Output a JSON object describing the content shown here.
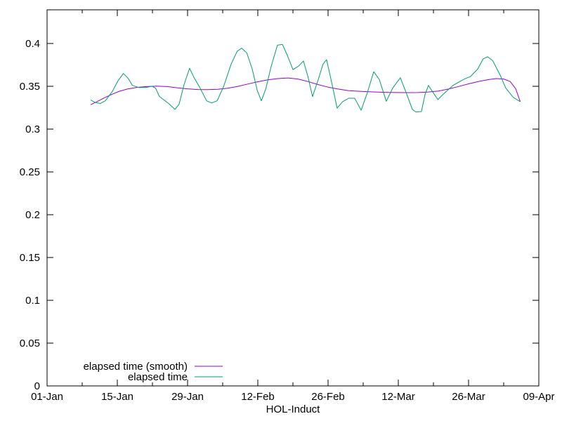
{
  "figure": {
    "background_color": "#ffffff",
    "axis_color": "#000000",
    "text_color": "#000000"
  },
  "chart_data": {
    "type": "line",
    "title": "",
    "xlabel": "HOL-Induct",
    "ylabel": "",
    "grid": false,
    "legend_position": "bottom-left-inside",
    "x_axis": {
      "unit": "date (day offset from 01-Jan)",
      "lim_days": [
        0,
        98
      ],
      "major_ticks": [
        {
          "day": 0,
          "label": "01-Jan"
        },
        {
          "day": 14,
          "label": "15-Jan"
        },
        {
          "day": 28,
          "label": "29-Jan"
        },
        {
          "day": 42,
          "label": "12-Feb"
        },
        {
          "day": 56,
          "label": "26-Feb"
        },
        {
          "day": 70,
          "label": "12-Mar"
        },
        {
          "day": 84,
          "label": "26-Mar"
        },
        {
          "day": 98,
          "label": "09-Apr"
        }
      ],
      "minor_tick_days": [
        7,
        21,
        35,
        49,
        63,
        77,
        91
      ]
    },
    "y_axis": {
      "lim": [
        0,
        0.4393
      ],
      "ticks": [
        {
          "value": 0,
          "label": "0"
        },
        {
          "value": 0.05,
          "label": "0.05"
        },
        {
          "value": 0.1,
          "label": "0.1"
        },
        {
          "value": 0.15,
          "label": "0.15"
        },
        {
          "value": 0.2,
          "label": "0.2"
        },
        {
          "value": 0.25,
          "label": "0.25"
        },
        {
          "value": 0.3,
          "label": "0.3"
        },
        {
          "value": 0.35,
          "label": "0.35"
        },
        {
          "value": 0.4,
          "label": "0.4"
        }
      ]
    },
    "series": [
      {
        "name": "elapsed time (smooth)",
        "color": "#9400d3",
        "points_day_value": [
          [
            8.7,
            0.3285
          ],
          [
            10,
            0.3322
          ],
          [
            11.5,
            0.3367
          ],
          [
            13,
            0.3408
          ],
          [
            14.5,
            0.3443
          ],
          [
            16,
            0.3468
          ],
          [
            18,
            0.3487
          ],
          [
            20,
            0.3498
          ],
          [
            22,
            0.3502
          ],
          [
            24,
            0.3496
          ],
          [
            26,
            0.3482
          ],
          [
            28,
            0.347
          ],
          [
            30,
            0.3462
          ],
          [
            32,
            0.346
          ],
          [
            34,
            0.3464
          ],
          [
            36,
            0.3477
          ],
          [
            38,
            0.3499
          ],
          [
            40,
            0.3526
          ],
          [
            42,
            0.3553
          ],
          [
            44,
            0.3575
          ],
          [
            46,
            0.359
          ],
          [
            48,
            0.3597
          ],
          [
            50,
            0.3585
          ],
          [
            52,
            0.3555
          ],
          [
            54,
            0.352
          ],
          [
            56,
            0.349
          ],
          [
            58,
            0.3468
          ],
          [
            60,
            0.345
          ],
          [
            62,
            0.3442
          ],
          [
            64,
            0.3436
          ],
          [
            66,
            0.3432
          ],
          [
            68,
            0.3428
          ],
          [
            70,
            0.3427
          ],
          [
            72,
            0.3426
          ],
          [
            74,
            0.3427
          ],
          [
            76,
            0.3433
          ],
          [
            78,
            0.3445
          ],
          [
            80,
            0.3468
          ],
          [
            82,
            0.3497
          ],
          [
            84,
            0.3528
          ],
          [
            86,
            0.3556
          ],
          [
            88,
            0.3578
          ],
          [
            89.5,
            0.359
          ],
          [
            91,
            0.3585
          ],
          [
            92.3,
            0.3555
          ],
          [
            93.4,
            0.347
          ],
          [
            94.3,
            0.332
          ]
        ]
      },
      {
        "name": "elapsed time",
        "color": "#009e73",
        "points_day_value": [
          [
            8.7,
            0.334
          ],
          [
            9.6,
            0.331
          ],
          [
            10.6,
            0.33
          ],
          [
            11.6,
            0.333
          ],
          [
            13,
            0.344
          ],
          [
            14.1,
            0.356
          ],
          [
            15.2,
            0.365
          ],
          [
            16.2,
            0.359
          ],
          [
            17,
            0.351
          ],
          [
            18.3,
            0.3485
          ],
          [
            19.6,
            0.3485
          ],
          [
            20.9,
            0.35
          ],
          [
            21.6,
            0.348
          ],
          [
            22.4,
            0.338
          ],
          [
            23.2,
            0.3345
          ],
          [
            24.2,
            0.33
          ],
          [
            25.5,
            0.323
          ],
          [
            26.3,
            0.329
          ],
          [
            27.3,
            0.352
          ],
          [
            28.4,
            0.371
          ],
          [
            29.3,
            0.36
          ],
          [
            30.4,
            0.349
          ],
          [
            31.8,
            0.333
          ],
          [
            32.8,
            0.3305
          ],
          [
            33.9,
            0.333
          ],
          [
            35.2,
            0.35
          ],
          [
            36.7,
            0.376
          ],
          [
            37.9,
            0.391
          ],
          [
            38.8,
            0.3945
          ],
          [
            39.8,
            0.389
          ],
          [
            40.9,
            0.37
          ],
          [
            41.9,
            0.345
          ],
          [
            42.7,
            0.333
          ],
          [
            43.6,
            0.347
          ],
          [
            44.6,
            0.372
          ],
          [
            45.9,
            0.398
          ],
          [
            46.9,
            0.399
          ],
          [
            47.9,
            0.386
          ],
          [
            49,
            0.3695
          ],
          [
            50.1,
            0.3735
          ],
          [
            51.1,
            0.3795
          ],
          [
            52,
            0.361
          ],
          [
            52.9,
            0.338
          ],
          [
            54,
            0.357
          ],
          [
            55,
            0.376
          ],
          [
            55.7,
            0.381
          ],
          [
            56.7,
            0.355
          ],
          [
            57.8,
            0.3245
          ],
          [
            58.9,
            0.332
          ],
          [
            60.1,
            0.336
          ],
          [
            61.3,
            0.336
          ],
          [
            62.6,
            0.322
          ],
          [
            63.8,
            0.342
          ],
          [
            65.1,
            0.367
          ],
          [
            66.2,
            0.358
          ],
          [
            67.6,
            0.3325
          ],
          [
            68.9,
            0.348
          ],
          [
            70.4,
            0.36
          ],
          [
            71.6,
            0.342
          ],
          [
            72.8,
            0.323
          ],
          [
            73.5,
            0.32
          ],
          [
            74.6,
            0.3205
          ],
          [
            75.3,
            0.34
          ],
          [
            76,
            0.351
          ],
          [
            77,
            0.342
          ],
          [
            77.9,
            0.3345
          ],
          [
            79,
            0.341
          ],
          [
            80.9,
            0.351
          ],
          [
            83,
            0.358
          ],
          [
            84.4,
            0.3615
          ],
          [
            85.8,
            0.37
          ],
          [
            86.9,
            0.382
          ],
          [
            87.8,
            0.3845
          ],
          [
            88.8,
            0.38
          ],
          [
            90.3,
            0.363
          ],
          [
            91.4,
            0.348
          ],
          [
            92.9,
            0.337
          ],
          [
            94.3,
            0.332
          ]
        ]
      }
    ]
  }
}
